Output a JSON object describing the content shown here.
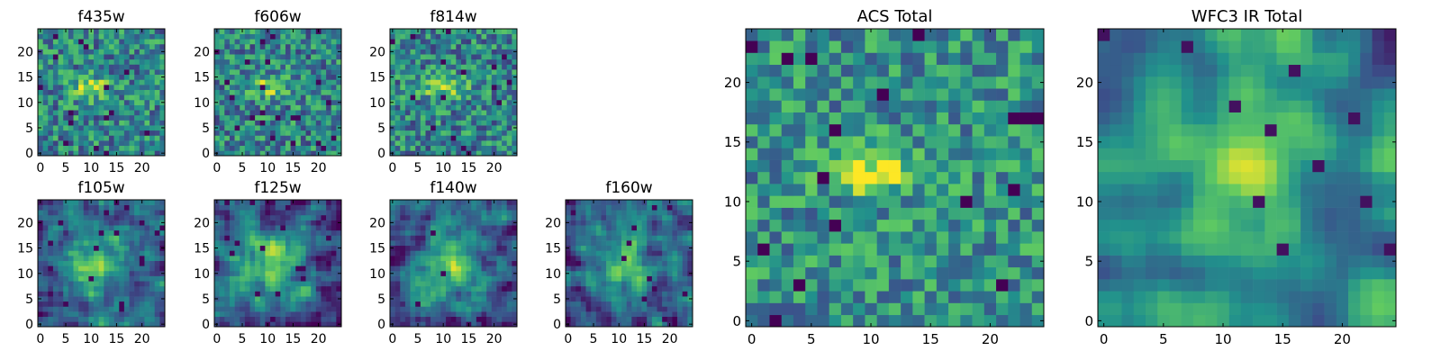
{
  "colormap": {
    "name": "viridis",
    "stops": [
      "#440154",
      "#3b528b",
      "#21918c",
      "#5ec962",
      "#fde725"
    ]
  },
  "chart_data": [
    {
      "type": "heatmap",
      "title": "f435w",
      "grid": [
        25,
        25
      ],
      "xticks": [
        "0",
        "5",
        "10",
        "15",
        "20"
      ],
      "yticks": [
        "0",
        "5",
        "10",
        "15",
        "20"
      ],
      "seed": 11,
      "pattern": "noisy"
    },
    {
      "type": "heatmap",
      "title": "f606w",
      "grid": [
        25,
        25
      ],
      "xticks": [
        "0",
        "5",
        "10",
        "15",
        "20"
      ],
      "yticks": [
        "0",
        "5",
        "10",
        "15",
        "20"
      ],
      "seed": 23,
      "pattern": "noisy"
    },
    {
      "type": "heatmap",
      "title": "f814w",
      "grid": [
        25,
        25
      ],
      "xticks": [
        "0",
        "5",
        "10",
        "15",
        "20"
      ],
      "yticks": [
        "0",
        "5",
        "10",
        "15",
        "20"
      ],
      "seed": 37,
      "pattern": "noisy"
    },
    {
      "type": "heatmap",
      "title": "f105w",
      "grid": [
        25,
        25
      ],
      "xticks": [
        "0",
        "5",
        "10",
        "15",
        "20"
      ],
      "yticks": [
        "0",
        "5",
        "10",
        "15",
        "20"
      ],
      "seed": 41,
      "pattern": "smooth"
    },
    {
      "type": "heatmap",
      "title": "f125w",
      "grid": [
        25,
        25
      ],
      "xticks": [
        "0",
        "5",
        "10",
        "15",
        "20"
      ],
      "yticks": [
        "0",
        "5",
        "10",
        "15",
        "20"
      ],
      "seed": 53,
      "pattern": "smooth"
    },
    {
      "type": "heatmap",
      "title": "f140w",
      "grid": [
        25,
        25
      ],
      "xticks": [
        "0",
        "5",
        "10",
        "15",
        "20"
      ],
      "yticks": [
        "0",
        "5",
        "10",
        "15",
        "20"
      ],
      "seed": 67,
      "pattern": "smooth"
    },
    {
      "type": "heatmap",
      "title": "f160w",
      "grid": [
        25,
        25
      ],
      "xticks": [
        "0",
        "5",
        "10",
        "15",
        "20"
      ],
      "yticks": [
        "0",
        "5",
        "10",
        "15",
        "20"
      ],
      "seed": 79,
      "pattern": "smooth"
    },
    {
      "type": "heatmap",
      "title": "ACS Total",
      "grid": [
        25,
        25
      ],
      "xticks": [
        "0",
        "5",
        "10",
        "15",
        "20"
      ],
      "yticks": [
        "0",
        "5",
        "10",
        "15",
        "20"
      ],
      "seed": 97,
      "pattern": "acs"
    },
    {
      "type": "heatmap",
      "title": "WFC3 IR Total",
      "grid": [
        25,
        25
      ],
      "xticks": [
        "0",
        "5",
        "10",
        "15",
        "20"
      ],
      "yticks": [
        "0",
        "5",
        "10",
        "15",
        "20"
      ],
      "seed": 103,
      "pattern": "ir"
    }
  ]
}
